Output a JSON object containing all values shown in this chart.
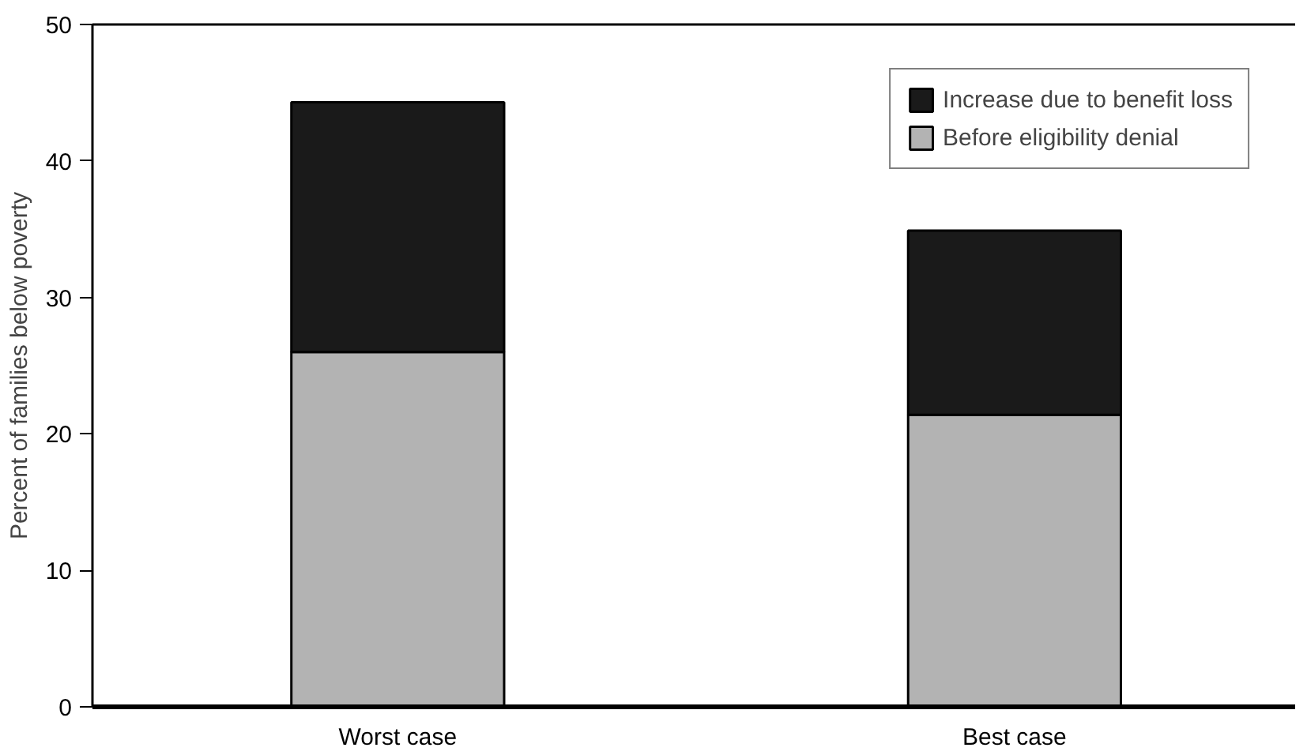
{
  "chart_data": {
    "type": "bar",
    "stacked": true,
    "ylabel": "Percent of families below poverty",
    "categories": [
      "Worst case",
      "Best case"
    ],
    "series": [
      {
        "name": "Before eligibility denial",
        "color": "#b3b3b3",
        "values": [
          26.0,
          21.4
        ]
      },
      {
        "name": "Increase due to benefit loss",
        "color": "#1a1a1a",
        "values": [
          18.3,
          13.5
        ]
      }
    ],
    "ylim": [
      0,
      50
    ],
    "yticks": [
      0,
      10,
      20,
      30,
      40,
      50
    ],
    "grid": false,
    "legend": "top right"
  }
}
